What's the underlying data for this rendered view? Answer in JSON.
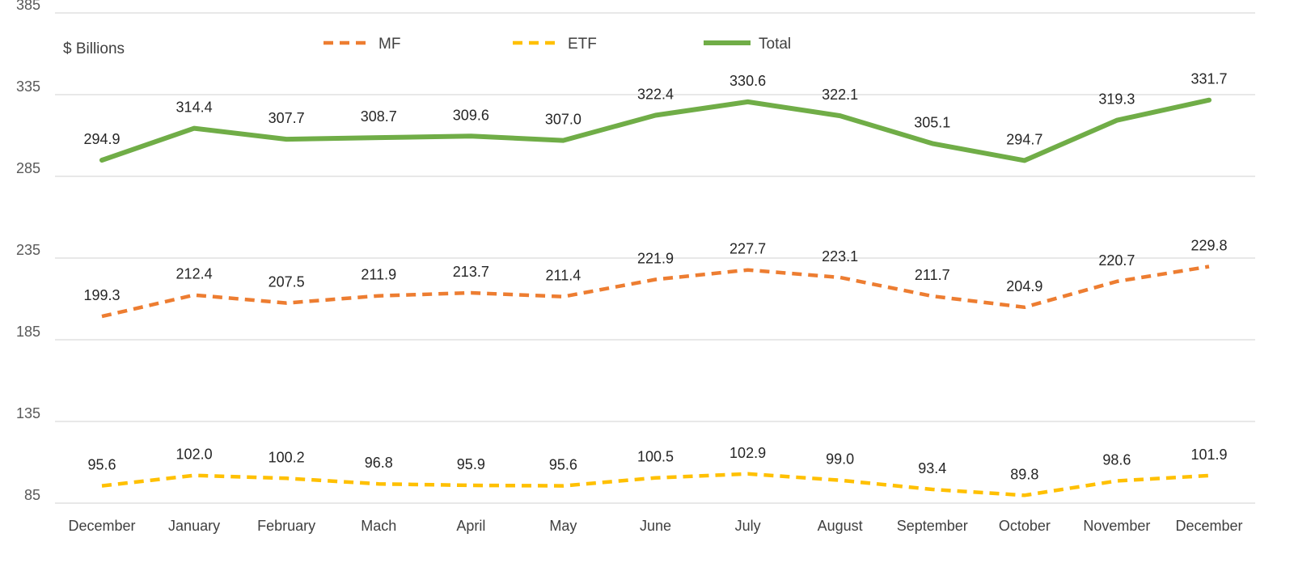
{
  "chart_data": {
    "type": "line",
    "title": "",
    "ylabel": "$ Billions",
    "xlabel": "",
    "categories": [
      "December",
      "January",
      "February",
      "Mach",
      "April",
      "May",
      "June",
      "July",
      "August",
      "September",
      "October",
      "November",
      "December"
    ],
    "ylim": [
      85,
      385
    ],
    "yticks": [
      "85",
      "135",
      "185",
      "235",
      "285",
      "335",
      "385"
    ],
    "grid": true,
    "legend_position": "top",
    "series": [
      {
        "name": "MF",
        "color": "#ED7D31",
        "style": "dashed",
        "values": [
          199.3,
          212.4,
          207.5,
          211.9,
          213.7,
          211.4,
          221.9,
          227.7,
          223.1,
          211.7,
          204.9,
          220.7,
          229.8
        ],
        "labels": [
          "199.3",
          "212.4",
          "207.5",
          "211.9",
          "213.7",
          "211.4",
          "221.9",
          "227.7",
          "223.1",
          "211.7",
          "204.9",
          "220.7",
          "229.8"
        ]
      },
      {
        "name": "ETF",
        "color": "#FFC000",
        "style": "dashed",
        "values": [
          95.6,
          102.0,
          100.2,
          96.8,
          95.9,
          95.6,
          100.5,
          102.9,
          99.0,
          93.4,
          89.8,
          98.6,
          101.9
        ],
        "labels": [
          "95.6",
          "102.0",
          "100.2",
          "96.8",
          "95.9",
          "95.6",
          "100.5",
          "102.9",
          "99.0",
          "93.4",
          "89.8",
          "98.6",
          "101.9"
        ]
      },
      {
        "name": "Total",
        "color": "#70AD47",
        "style": "solid",
        "values": [
          294.9,
          314.4,
          307.7,
          308.7,
          309.6,
          307.0,
          322.4,
          330.6,
          322.1,
          305.1,
          294.7,
          319.3,
          331.7
        ],
        "labels": [
          "294.9",
          "314.4",
          "307.7",
          "308.7",
          "309.6",
          "307.0",
          "322.4",
          "330.6",
          "322.1",
          "305.1",
          "294.7",
          "319.3",
          "331.7"
        ]
      }
    ]
  }
}
